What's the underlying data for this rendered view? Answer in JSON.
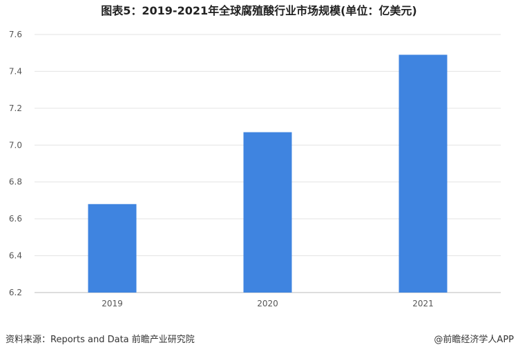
{
  "chart_data": {
    "type": "bar",
    "title": "图表5：2019-2021年全球腐殖酸行业市场规模(单位：亿美元)",
    "categories": [
      "2019",
      "2020",
      "2021"
    ],
    "values": [
      6.68,
      7.07,
      7.49
    ],
    "xlabel": "",
    "ylabel": "",
    "ylim": [
      6.2,
      7.6
    ],
    "yticks": [
      "6.2",
      "6.4",
      "6.6",
      "6.8",
      "7.0",
      "7.2",
      "7.4",
      "7.6"
    ],
    "grid": true,
    "bar_color": "#3f84e0"
  },
  "footer": {
    "source": "资料来源：Reports and Data 前瞻产业研究院",
    "credit": "@前瞻经济学人APP"
  },
  "watermark": "前瞻产业研究院"
}
